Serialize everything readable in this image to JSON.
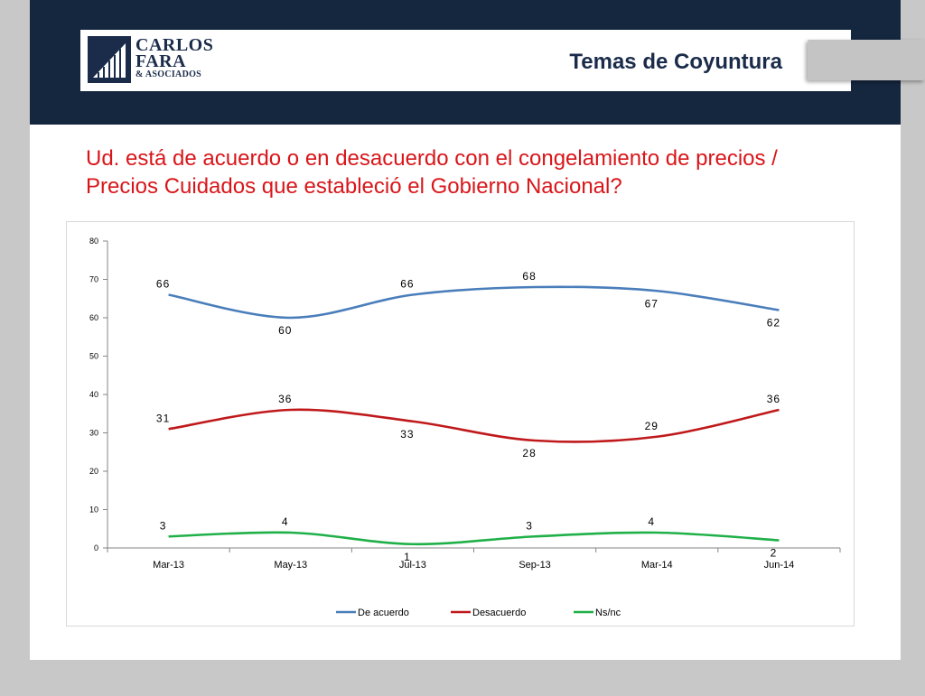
{
  "header": {
    "logo": {
      "line1": "CARLOS",
      "line2": "FARA",
      "line3": "& ASOCIADOS"
    },
    "topic": "Temas de Coyuntura"
  },
  "question": "Ud. está de acuerdo o en desacuerdo con el congelamiento de precios / Precios Cuidados que estableció el Gobierno Nacional?",
  "colors": {
    "header_band": "#15263f",
    "question_text": "#d8161a",
    "series_de_acuerdo": "#4a7ebb",
    "series_desacuerdo": "#c0191b",
    "series_nsnc": "#1fb048"
  },
  "chart_data": {
    "type": "line",
    "categories": [
      "Mar-13",
      "May-13",
      "Jul-13",
      "Sep-13",
      "Mar-14",
      "Jun-14"
    ],
    "ylim": [
      0,
      80
    ],
    "yticks": [
      0,
      10,
      20,
      30,
      40,
      50,
      60,
      70,
      80
    ],
    "grid": false,
    "legend": "bottom",
    "smooth": true,
    "series": [
      {
        "name": "De acuerdo",
        "values": [
          66,
          60,
          66,
          68,
          67,
          62
        ],
        "color": "#4a7ebb"
      },
      {
        "name": "Desacuerdo",
        "values": [
          31,
          36,
          33,
          28,
          29,
          36
        ],
        "color": "#c0191b"
      },
      {
        "name": "Ns/nc",
        "values": [
          3,
          4,
          1,
          3,
          4,
          2
        ],
        "color": "#1fb048"
      }
    ]
  }
}
